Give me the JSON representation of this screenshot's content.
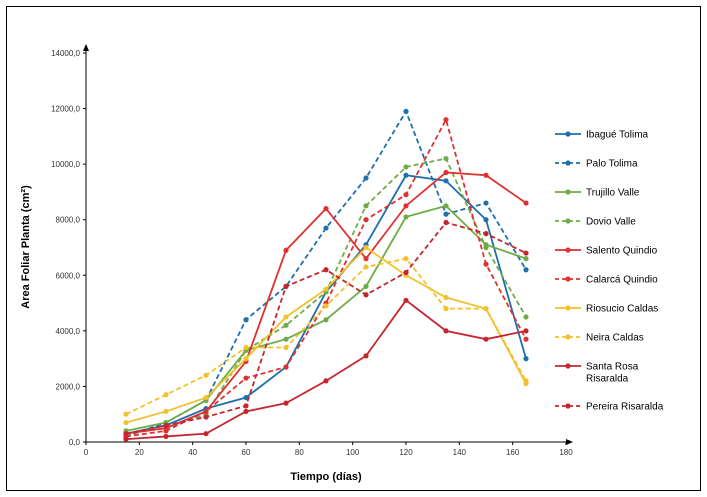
{
  "chart_data": {
    "type": "line",
    "xlabel": "Tiempo (días)",
    "ylabel": "Area Foliar Planta (cm²)",
    "xlim": [
      0,
      180
    ],
    "ylim": [
      0,
      14000
    ],
    "x_ticks": [
      0,
      20,
      40,
      60,
      80,
      100,
      120,
      140,
      160,
      180
    ],
    "y_ticks": [
      0,
      2000,
      4000,
      6000,
      8000,
      10000,
      12000,
      14000
    ],
    "y_tick_labels": [
      "0,0",
      "2000,0",
      "4000,0",
      "6000,0",
      "8000,0",
      "10000,0",
      "12000,0",
      "14000,0"
    ],
    "grid": false,
    "legend_position": "right",
    "x": [
      15,
      30,
      45,
      60,
      75,
      90,
      105,
      120,
      135,
      150,
      165
    ],
    "series": [
      {
        "name": "Ibagué Tolima",
        "color": "#1f6fad",
        "dash": false,
        "values": [
          300,
          600,
          1200,
          1600,
          2700,
          5400,
          7100,
          9600,
          9400,
          8000,
          3000
        ]
      },
      {
        "name": "Palo Tolima",
        "color": "#1f6fad",
        "dash": true,
        "values": [
          200,
          700,
          1500,
          4400,
          5600,
          7700,
          9500,
          11900,
          8200,
          8600,
          6200
        ]
      },
      {
        "name": "Trujillo Valle",
        "color": "#6fac46",
        "dash": false,
        "values": [
          400,
          700,
          1500,
          3300,
          3700,
          4400,
          5600,
          8100,
          8500,
          7100,
          6600
        ]
      },
      {
        "name": "Dovio Valle",
        "color": "#6fac46",
        "dash": true,
        "values": [
          300,
          500,
          1000,
          3300,
          4200,
          5400,
          8500,
          9900,
          10200,
          7000,
          4500
        ]
      },
      {
        "name": "Salento Quindio",
        "color": "#e03131",
        "dash": false,
        "values": [
          300,
          500,
          1100,
          2900,
          6900,
          8400,
          6600,
          8500,
          9700,
          9600,
          8600
        ]
      },
      {
        "name": "Calarcá Quindio",
        "color": "#e03131",
        "dash": true,
        "values": [
          200,
          400,
          1100,
          2300,
          2700,
          5000,
          8000,
          8900,
          11600,
          6400,
          3700
        ]
      },
      {
        "name": "Riosucio Caldas",
        "color": "#f2c12e",
        "dash": false,
        "values": [
          700,
          1100,
          1600,
          3000,
          4500,
          5500,
          7000,
          6000,
          5200,
          4800,
          2100
        ]
      },
      {
        "name": "Neira Caldas",
        "color": "#f2c12e",
        "dash": true,
        "values": [
          1000,
          1700,
          2400,
          3400,
          3400,
          4900,
          6300,
          6600,
          4800,
          4800,
          2200
        ]
      },
      {
        "name": "Santa Rosa Risaralda",
        "color": "#c4262e",
        "dash": false,
        "values": [
          100,
          200,
          300,
          1100,
          1400,
          2200,
          3100,
          5100,
          4000,
          3700,
          4000
        ]
      },
      {
        "name": "Pereira Risaralda",
        "color": "#c4262e",
        "dash": true,
        "values": [
          300,
          600,
          900,
          1300,
          5600,
          6200,
          5300,
          6100,
          7900,
          7500,
          6800
        ]
      }
    ]
  }
}
